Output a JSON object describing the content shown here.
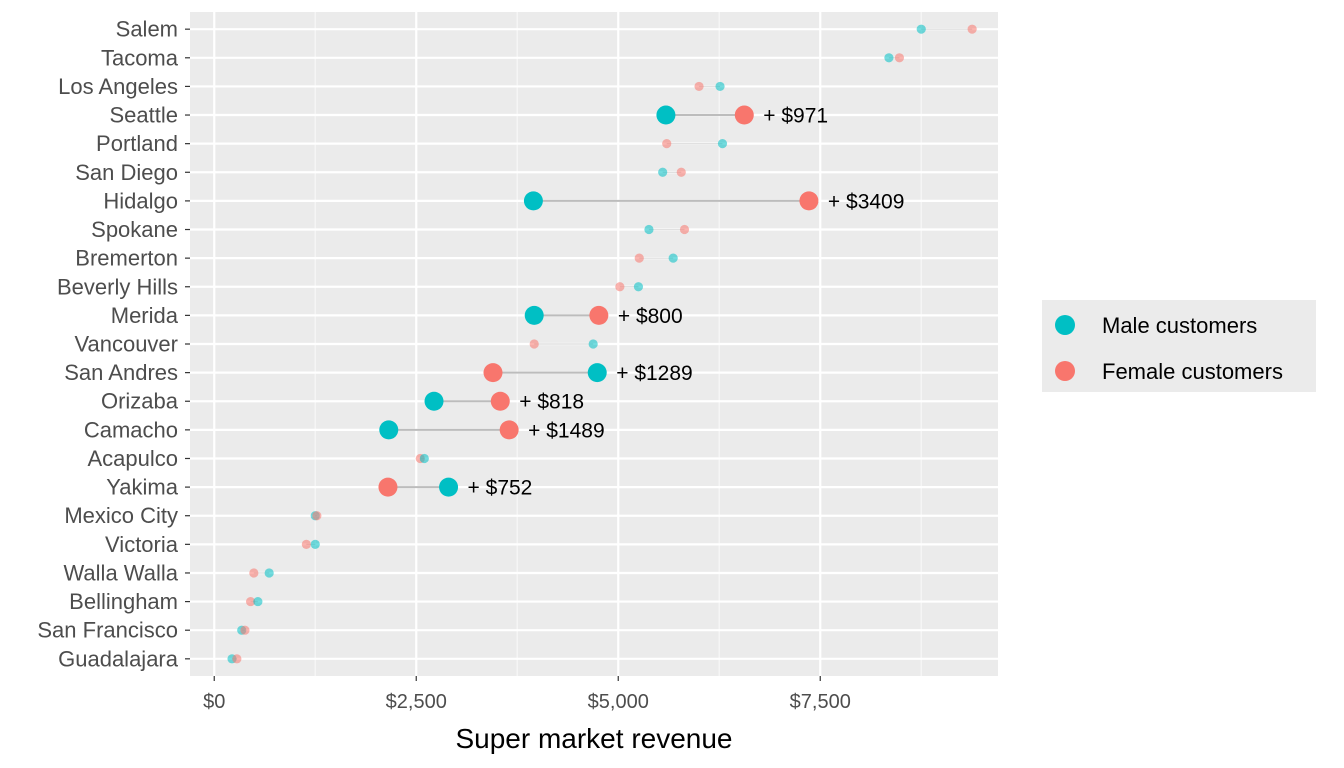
{
  "chart_data": {
    "type": "dumbbell",
    "xlabel": "Super market revenue",
    "x_ticks": [
      {
        "value": 0,
        "label": "$0"
      },
      {
        "value": 2500,
        "label": "$2,500"
      },
      {
        "value": 5000,
        "label": "$5,000"
      },
      {
        "value": 7500,
        "label": "$7,500"
      }
    ],
    "xlim": [
      -300,
      9700
    ],
    "grid": true,
    "legend_position": "right",
    "series": [
      {
        "key": "male",
        "name": "Male customers",
        "color": "#00BFC4"
      },
      {
        "key": "female",
        "name": "Female customers",
        "color": "#F8766D"
      }
    ],
    "rows": [
      {
        "city": "Salem",
        "male": 8750,
        "female": 9380,
        "highlight": false,
        "diff_label": ""
      },
      {
        "city": "Tacoma",
        "male": 8350,
        "female": 8480,
        "highlight": false,
        "diff_label": ""
      },
      {
        "city": "Los Angeles",
        "male": 6260,
        "female": 6000,
        "highlight": false,
        "diff_label": ""
      },
      {
        "city": "Seattle",
        "male": 5590,
        "female": 6560,
        "highlight": true,
        "diff_label": "+ $971"
      },
      {
        "city": "Portland",
        "male": 6290,
        "female": 5600,
        "highlight": false,
        "diff_label": ""
      },
      {
        "city": "San Diego",
        "male": 5550,
        "female": 5780,
        "highlight": false,
        "diff_label": ""
      },
      {
        "city": "Hidalgo",
        "male": 3950,
        "female": 7360,
        "highlight": true,
        "diff_label": "+ $3409"
      },
      {
        "city": "Spokane",
        "male": 5380,
        "female": 5820,
        "highlight": false,
        "diff_label": ""
      },
      {
        "city": "Bremerton",
        "male": 5680,
        "female": 5260,
        "highlight": false,
        "diff_label": ""
      },
      {
        "city": "Beverly Hills",
        "male": 5250,
        "female": 5020,
        "highlight": false,
        "diff_label": ""
      },
      {
        "city": "Merida",
        "male": 3960,
        "female": 4760,
        "highlight": true,
        "diff_label": "+ $800"
      },
      {
        "city": "Vancouver",
        "male": 4690,
        "female": 3960,
        "highlight": false,
        "diff_label": ""
      },
      {
        "city": "San Andres",
        "male": 4740,
        "female": 3450,
        "highlight": true,
        "diff_label": "+ $1289"
      },
      {
        "city": "Orizaba",
        "male": 2720,
        "female": 3540,
        "highlight": true,
        "diff_label": "+ $818"
      },
      {
        "city": "Camacho",
        "male": 2160,
        "female": 3650,
        "highlight": true,
        "diff_label": "+ $1489"
      },
      {
        "city": "Acapulco",
        "male": 2600,
        "female": 2550,
        "highlight": false,
        "diff_label": ""
      },
      {
        "city": "Yakima",
        "male": 2900,
        "female": 2150,
        "highlight": true,
        "diff_label": "+ $752"
      },
      {
        "city": "Mexico City",
        "male": 1250,
        "female": 1270,
        "highlight": false,
        "diff_label": ""
      },
      {
        "city": "Victoria",
        "male": 1250,
        "female": 1140,
        "highlight": false,
        "diff_label": ""
      },
      {
        "city": "Walla Walla",
        "male": 680,
        "female": 490,
        "highlight": false,
        "diff_label": ""
      },
      {
        "city": "Bellingham",
        "male": 540,
        "female": 450,
        "highlight": false,
        "diff_label": ""
      },
      {
        "city": "San Francisco",
        "male": 340,
        "female": 380,
        "highlight": false,
        "diff_label": ""
      },
      {
        "city": "Guadalajara",
        "male": 220,
        "female": 280,
        "highlight": false,
        "diff_label": ""
      }
    ]
  }
}
